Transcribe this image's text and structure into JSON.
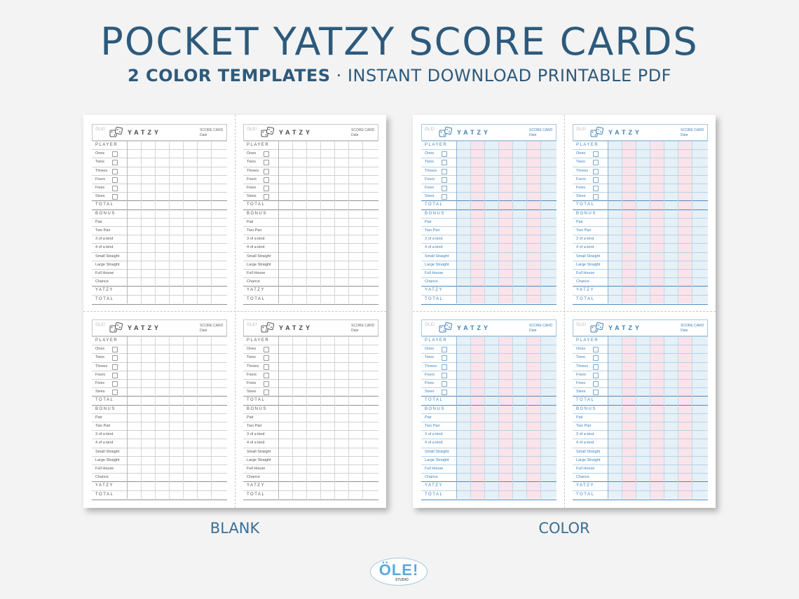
{
  "header": {
    "title": "POCKET YATZY SCORE CARDS",
    "subtitle_bold": "2 COLOR TEMPLATES",
    "subtitle_rest": " · INSTANT DOWNLOAD PRINTABLE PDF"
  },
  "card": {
    "title": "YATZY",
    "score_card": "SCORE CARD",
    "date": "Date",
    "rows": [
      {
        "label": "PLAYER",
        "caps": true
      },
      {
        "label": "Ones",
        "die": true
      },
      {
        "label": "Twos",
        "die": true
      },
      {
        "label": "Threes",
        "die": true
      },
      {
        "label": "Fours",
        "die": true
      },
      {
        "label": "Fives",
        "die": true
      },
      {
        "label": "Sixes",
        "die": true
      },
      {
        "label": "TOTAL",
        "caps": true,
        "strong": true
      },
      {
        "label": "BONUS",
        "caps": true,
        "strong": true
      },
      {
        "label": "Pair"
      },
      {
        "label": "Two Pair"
      },
      {
        "label": "3 of a kind"
      },
      {
        "label": "4 of a kind"
      },
      {
        "label": "Small Straight"
      },
      {
        "label": "Large Straight"
      },
      {
        "label": "Full House"
      },
      {
        "label": "Chance"
      },
      {
        "label": "YATZY",
        "caps": true,
        "strong": true
      },
      {
        "label": "TOTAL",
        "caps": true
      }
    ]
  },
  "captions": {
    "blank": "BLANK",
    "color": "COLOR"
  },
  "colors": {
    "title": "#2d5a7c",
    "color_pink": "#fbe3ea",
    "color_blue": "#e6f0f7",
    "color_accent": "#3f7fb5"
  },
  "icons": {
    "dice": "dice-icon",
    "die_face": "die-face-icon"
  },
  "brand": {
    "name": "ÖLE!",
    "sub": "STUDIO"
  }
}
